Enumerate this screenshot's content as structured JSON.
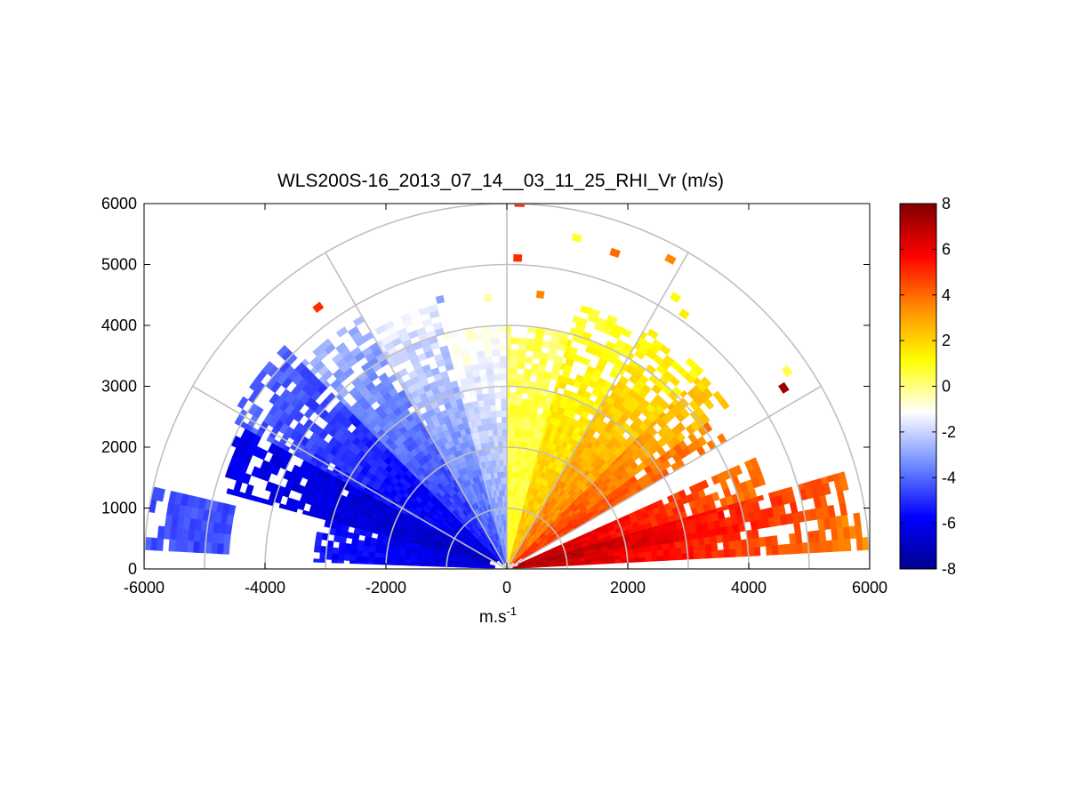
{
  "chart_data": {
    "type": "heatmap",
    "title": "WLS200S-16_2013_07_14__03_11_25_RHI_Vr (m/s)",
    "xlabel_base": "m.s",
    "xlabel_exp": "-1",
    "ylabel": "",
    "xlim": [
      -6000,
      6000
    ],
    "ylim": [
      0,
      6000
    ],
    "x_ticks": [
      "-6000",
      "-4000",
      "-2000",
      "0",
      "2000",
      "4000",
      "6000"
    ],
    "y_ticks": [
      "0",
      "1000",
      "2000",
      "3000",
      "4000",
      "5000",
      "6000"
    ],
    "polar_grid": {
      "range_rings": [
        1000,
        2000,
        3000,
        4000,
        5000,
        6000
      ],
      "spokes_deg": [
        0,
        30,
        60,
        90,
        120,
        150,
        180
      ]
    },
    "colorbar": {
      "range": [
        -8,
        8
      ],
      "ticks": [
        "-8",
        "-6",
        "-4",
        "-2",
        "0",
        "2",
        "4",
        "6",
        "8"
      ],
      "colormap": "blue-white-red",
      "colors": [
        "#00008f",
        "#0000ff",
        "#6f8cff",
        "#ffffff",
        "#ffff00",
        "#ff8c00",
        "#ff0000",
        "#800000"
      ]
    },
    "sectors": [
      {
        "az_from": 3,
        "az_to": 9,
        "r_from": 100,
        "r_to": 6000,
        "vr_near": 7,
        "vr_far": 3.5
      },
      {
        "az_from": 9,
        "az_to": 16,
        "r_from": 100,
        "r_to": 5800,
        "vr_near": 7.5,
        "vr_far": 4
      },
      {
        "az_from": 16,
        "az_to": 24,
        "r_from": 200,
        "r_to": 4600,
        "vr_near": 7,
        "vr_far": 3.5
      },
      {
        "az_from": 30,
        "az_to": 36,
        "r_from": 300,
        "r_to": 4200,
        "vr_near": 5,
        "vr_far": 3.5
      },
      {
        "az_from": 36,
        "az_to": 45,
        "r_from": 150,
        "r_to": 4500,
        "vr_near": 5,
        "vr_far": 2
      },
      {
        "az_from": 45,
        "az_to": 60,
        "r_from": 100,
        "r_to": 4600,
        "vr_near": 4,
        "vr_far": 1.2
      },
      {
        "az_from": 60,
        "az_to": 75,
        "r_from": 100,
        "r_to": 4500,
        "vr_near": 2.5,
        "vr_far": 0.8
      },
      {
        "az_from": 75,
        "az_to": 90,
        "r_from": 100,
        "r_to": 4000,
        "vr_near": 0.8,
        "vr_far": 0.3
      },
      {
        "az_from": 90,
        "az_to": 105,
        "r_from": 100,
        "r_to": 4000,
        "vr_near": -3.5,
        "vr_far": -0.8
      },
      {
        "az_from": 105,
        "az_to": 120,
        "r_from": 100,
        "r_to": 4500,
        "vr_near": -4.5,
        "vr_far": -1.5
      },
      {
        "az_from": 120,
        "az_to": 135,
        "r_from": 100,
        "r_to": 4800,
        "vr_near": -5.5,
        "vr_far": -2.5
      },
      {
        "az_from": 135,
        "az_to": 152,
        "r_from": 200,
        "r_to": 5200,
        "vr_near": -6.5,
        "vr_far": -4
      },
      {
        "az_from": 152,
        "az_to": 165,
        "r_from": 300,
        "r_to": 5000,
        "vr_near": -7,
        "vr_far": -6
      },
      {
        "az_from": 165,
        "az_to": 178,
        "r_from": 200,
        "r_to": 3200,
        "vr_near": -6.5,
        "vr_far": -5.5
      },
      {
        "az_from": 167,
        "az_to": 177,
        "r_from": 4600,
        "r_to": 6000,
        "vr_near": -4.5,
        "vr_far": -4.5
      }
    ],
    "gates": [
      {
        "az": 88,
        "r": 5950,
        "vr": 5
      },
      {
        "az": 88,
        "r": 5050,
        "vr": 5
      },
      {
        "az": 83,
        "r": 4480,
        "vr": 3.5
      },
      {
        "az": 78,
        "r": 5500,
        "vr": 0.7
      },
      {
        "az": 71,
        "r": 5430,
        "vr": 4
      },
      {
        "az": 62,
        "r": 5700,
        "vr": 3.5
      },
      {
        "az": 58,
        "r": 5200,
        "vr": 1.2
      },
      {
        "az": 55,
        "r": 5050,
        "vr": 1.5
      },
      {
        "az": 35,
        "r": 5600,
        "vr": 0.5
      },
      {
        "az": 33,
        "r": 5400,
        "vr": 7.5
      },
      {
        "az": 126,
        "r": 5250,
        "vr": 5
      },
      {
        "az": 104,
        "r": 4500,
        "vr": -3
      },
      {
        "az": 94,
        "r": 4400,
        "vr": -0.3
      }
    ]
  }
}
